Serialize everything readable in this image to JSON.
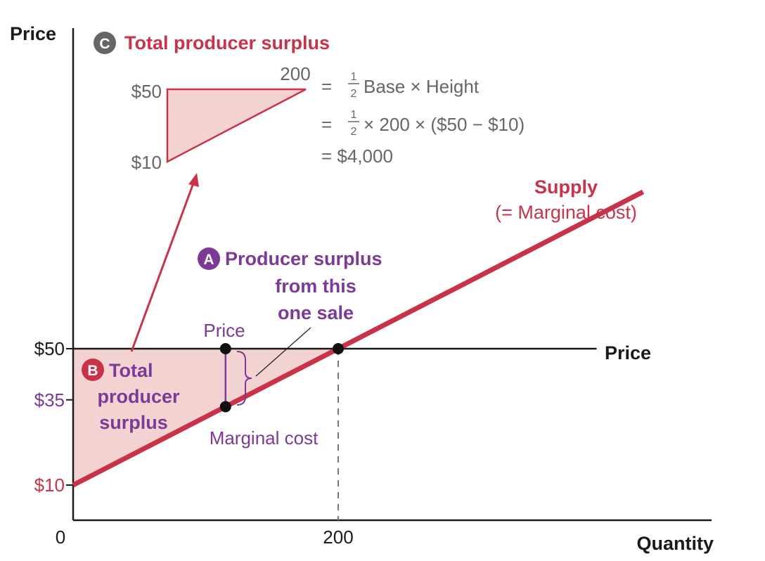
{
  "colors": {
    "red": "#c8334a",
    "purple": "#7b3a96",
    "fill": "#f3d3d2",
    "axis": "#1a1a1a",
    "gray": "#666666",
    "dark_badge": "#666666"
  },
  "chart_data": {
    "type": "line",
    "ylabel": "Price",
    "xlabel": "Quantity",
    "origin_label": "0",
    "x_ticks": [
      {
        "value": 200,
        "label": "200"
      }
    ],
    "y_ticks": [
      {
        "value": 50,
        "label": "$50",
        "color": "axis"
      },
      {
        "value": 35,
        "label": "$35",
        "color": "purple"
      },
      {
        "value": 10,
        "label": "$10",
        "color": "red"
      }
    ],
    "supply": {
      "label": "Supply",
      "sublabel": "(= Marginal cost)",
      "points": [
        [
          0,
          10
        ],
        [
          430,
          96
        ]
      ]
    },
    "price_line": {
      "label": "Price",
      "value": 50,
      "x_end": 395
    },
    "marked_points": [
      {
        "name": "price-at-sale",
        "x": 115,
        "y": 50
      },
      {
        "name": "marginal-cost-at-sale",
        "x": 115,
        "y": 33
      },
      {
        "name": "equilibrium",
        "x": 200,
        "y": 50
      }
    ],
    "single_sale_quantity": 115,
    "annotation_a": {
      "badge": "A",
      "lines": [
        "Producer surplus",
        "from this",
        "one sale"
      ],
      "price_label": "Price",
      "mc_label": "Marginal cost"
    },
    "annotation_b": {
      "badge": "B",
      "lines": [
        "Total",
        "producer",
        "surplus"
      ]
    },
    "annotation_c": {
      "badge": "C",
      "title": "Total producer surplus",
      "inset_high_label": "$50",
      "inset_low_label": "$10",
      "inset_base_label": "200",
      "formula": {
        "eq": "=",
        "half_num": "1",
        "half_den": "2",
        "line1": "Base × Height",
        "line2": "× 200 × ($50 − $10)",
        "line3": "= $4,000"
      }
    }
  }
}
